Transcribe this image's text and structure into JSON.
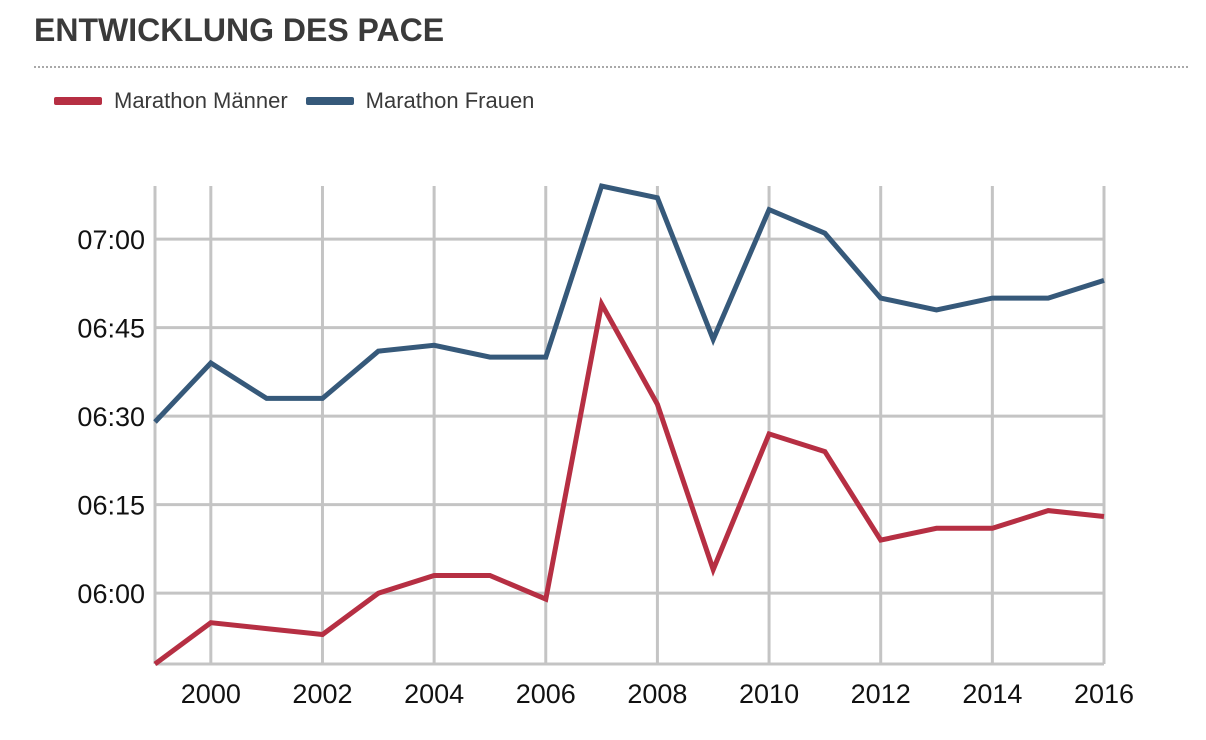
{
  "title": "ENTWICKLUNG DES PACE",
  "colors": {
    "men": "#b62f43",
    "women": "#36597a",
    "grid": "#c4c4c4",
    "text": "#3a3a3a"
  },
  "chart_data": {
    "type": "line",
    "x": [
      1999,
      2000,
      2001,
      2002,
      2003,
      2004,
      2005,
      2006,
      2007,
      2008,
      2009,
      2010,
      2011,
      2012,
      2013,
      2014,
      2015,
      2016
    ],
    "x_tick_labels": [
      "2000",
      "2002",
      "2004",
      "2006",
      "2008",
      "2010",
      "2012",
      "2014",
      "2016"
    ],
    "y_tick_labels": [
      "06:00",
      "06:15",
      "06:30",
      "06:45",
      "07:00"
    ],
    "y_unit": "pace (min:sec)",
    "ylim": [
      "05:48",
      "07:09"
    ],
    "xlim": [
      1999,
      2016
    ],
    "grid": true,
    "legend_position": "top-left",
    "series": [
      {
        "name": "Marathon Männer",
        "color": "#b62f43",
        "values": [
          "05:48",
          "05:55",
          "05:54",
          "05:53",
          "06:00",
          "06:03",
          "06:03",
          "05:59",
          "06:49",
          "06:32",
          "06:04",
          "06:27",
          "06:24",
          "06:09",
          "06:11",
          "06:11",
          "06:14",
          "06:13"
        ]
      },
      {
        "name": "Marathon Frauen",
        "color": "#36597a",
        "values": [
          "06:29",
          "06:39",
          "06:33",
          "06:33",
          "06:41",
          "06:42",
          "06:40",
          "06:40",
          "07:09",
          "07:07",
          "06:43",
          "07:05",
          "07:01",
          "06:50",
          "06:48",
          "06:50",
          "06:50",
          "06:53"
        ]
      }
    ]
  }
}
